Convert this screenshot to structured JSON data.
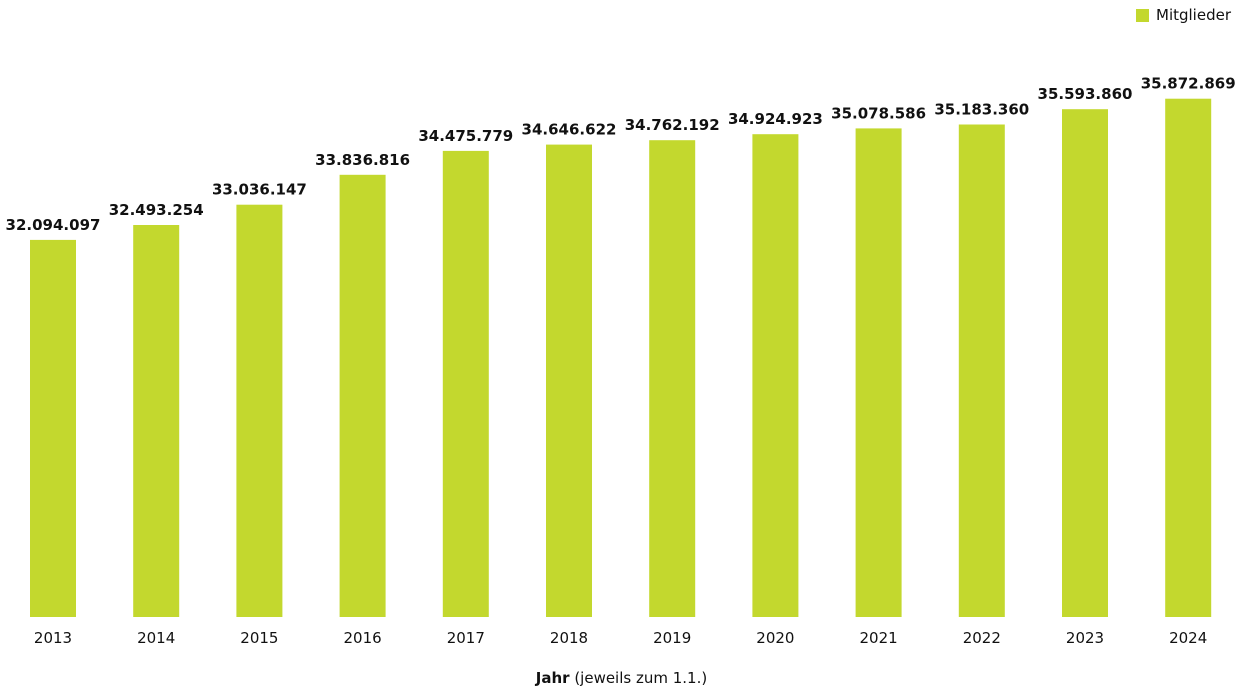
{
  "chart_data": {
    "type": "bar",
    "categories": [
      "2013",
      "2014",
      "2015",
      "2016",
      "2017",
      "2018",
      "2019",
      "2020",
      "2021",
      "2022",
      "2023",
      "2024"
    ],
    "series": [
      {
        "name": "Mitglieder",
        "color": "#c3d82e",
        "values": [
          32094097,
          32493254,
          33036147,
          33836816,
          34475779,
          34646622,
          34762192,
          34924923,
          35078586,
          35183360,
          35593860,
          35872869
        ],
        "value_labels": [
          "32.094.097",
          "32.493.254",
          "33.036.147",
          "33.836.816",
          "34.475.779",
          "34.646.622",
          "34.762.192",
          "34.924.923",
          "35.078.586",
          "35.183.360",
          "35.593.860",
          "35.872.869"
        ]
      }
    ],
    "xlabel_bold": "Jahr",
    "xlabel_rest": " (jeweils zum 1.1.)",
    "ylim": [
      22000000,
      36000000
    ],
    "grid": false,
    "legend": "top-right"
  }
}
